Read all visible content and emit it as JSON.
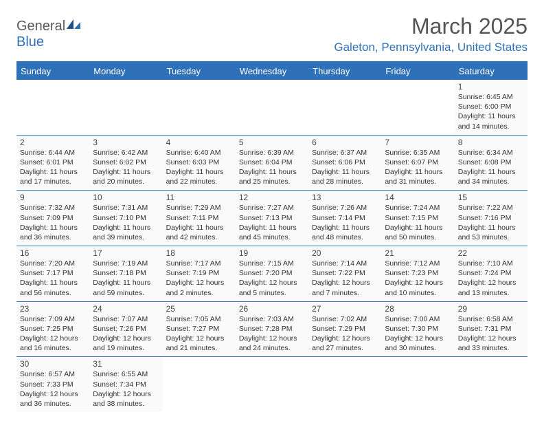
{
  "logo": {
    "text1": "General",
    "text2": "Blue"
  },
  "title": "March 2025",
  "location": "Galeton, Pennsylvania, United States",
  "colors": {
    "header_bg": "#2f71b8",
    "header_text": "#ffffff",
    "border": "#2f71b8",
    "cell_bg": "#fafafa",
    "text": "#333333"
  },
  "weekdays": [
    "Sunday",
    "Monday",
    "Tuesday",
    "Wednesday",
    "Thursday",
    "Friday",
    "Saturday"
  ],
  "days": {
    "1": {
      "sr": "6:45 AM",
      "ss": "6:00 PM",
      "dl": "11 hours and 14 minutes."
    },
    "2": {
      "sr": "6:44 AM",
      "ss": "6:01 PM",
      "dl": "11 hours and 17 minutes."
    },
    "3": {
      "sr": "6:42 AM",
      "ss": "6:02 PM",
      "dl": "11 hours and 20 minutes."
    },
    "4": {
      "sr": "6:40 AM",
      "ss": "6:03 PM",
      "dl": "11 hours and 22 minutes."
    },
    "5": {
      "sr": "6:39 AM",
      "ss": "6:04 PM",
      "dl": "11 hours and 25 minutes."
    },
    "6": {
      "sr": "6:37 AM",
      "ss": "6:06 PM",
      "dl": "11 hours and 28 minutes."
    },
    "7": {
      "sr": "6:35 AM",
      "ss": "6:07 PM",
      "dl": "11 hours and 31 minutes."
    },
    "8": {
      "sr": "6:34 AM",
      "ss": "6:08 PM",
      "dl": "11 hours and 34 minutes."
    },
    "9": {
      "sr": "7:32 AM",
      "ss": "7:09 PM",
      "dl": "11 hours and 36 minutes."
    },
    "10": {
      "sr": "7:31 AM",
      "ss": "7:10 PM",
      "dl": "11 hours and 39 minutes."
    },
    "11": {
      "sr": "7:29 AM",
      "ss": "7:11 PM",
      "dl": "11 hours and 42 minutes."
    },
    "12": {
      "sr": "7:27 AM",
      "ss": "7:13 PM",
      "dl": "11 hours and 45 minutes."
    },
    "13": {
      "sr": "7:26 AM",
      "ss": "7:14 PM",
      "dl": "11 hours and 48 minutes."
    },
    "14": {
      "sr": "7:24 AM",
      "ss": "7:15 PM",
      "dl": "11 hours and 50 minutes."
    },
    "15": {
      "sr": "7:22 AM",
      "ss": "7:16 PM",
      "dl": "11 hours and 53 minutes."
    },
    "16": {
      "sr": "7:20 AM",
      "ss": "7:17 PM",
      "dl": "11 hours and 56 minutes."
    },
    "17": {
      "sr": "7:19 AM",
      "ss": "7:18 PM",
      "dl": "11 hours and 59 minutes."
    },
    "18": {
      "sr": "7:17 AM",
      "ss": "7:19 PM",
      "dl": "12 hours and 2 minutes."
    },
    "19": {
      "sr": "7:15 AM",
      "ss": "7:20 PM",
      "dl": "12 hours and 5 minutes."
    },
    "20": {
      "sr": "7:14 AM",
      "ss": "7:22 PM",
      "dl": "12 hours and 7 minutes."
    },
    "21": {
      "sr": "7:12 AM",
      "ss": "7:23 PM",
      "dl": "12 hours and 10 minutes."
    },
    "22": {
      "sr": "7:10 AM",
      "ss": "7:24 PM",
      "dl": "12 hours and 13 minutes."
    },
    "23": {
      "sr": "7:09 AM",
      "ss": "7:25 PM",
      "dl": "12 hours and 16 minutes."
    },
    "24": {
      "sr": "7:07 AM",
      "ss": "7:26 PM",
      "dl": "12 hours and 19 minutes."
    },
    "25": {
      "sr": "7:05 AM",
      "ss": "7:27 PM",
      "dl": "12 hours and 21 minutes."
    },
    "26": {
      "sr": "7:03 AM",
      "ss": "7:28 PM",
      "dl": "12 hours and 24 minutes."
    },
    "27": {
      "sr": "7:02 AM",
      "ss": "7:29 PM",
      "dl": "12 hours and 27 minutes."
    },
    "28": {
      "sr": "7:00 AM",
      "ss": "7:30 PM",
      "dl": "12 hours and 30 minutes."
    },
    "29": {
      "sr": "6:58 AM",
      "ss": "7:31 PM",
      "dl": "12 hours and 33 minutes."
    },
    "30": {
      "sr": "6:57 AM",
      "ss": "7:33 PM",
      "dl": "12 hours and 36 minutes."
    },
    "31": {
      "sr": "6:55 AM",
      "ss": "7:34 PM",
      "dl": "12 hours and 38 minutes."
    }
  },
  "labels": {
    "sunrise": "Sunrise:",
    "sunset": "Sunset:",
    "daylight": "Daylight:"
  },
  "layout": {
    "first_day_col": 6,
    "num_days": 31
  }
}
